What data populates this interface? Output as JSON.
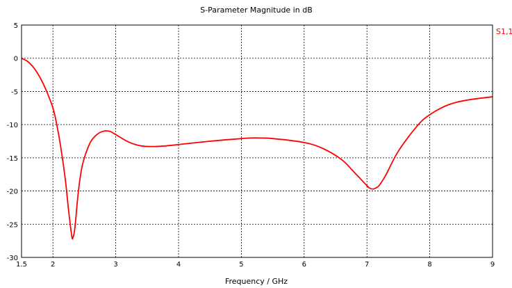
{
  "chart_data": {
    "type": "line",
    "title": "S-Parameter Magnitude in dB",
    "xlabel": "Frequency / GHz",
    "ylabel": "",
    "xlim": [
      1.5,
      9
    ],
    "ylim": [
      -30,
      5
    ],
    "x_ticks": [
      1.5,
      2,
      3,
      4,
      5,
      6,
      7,
      8,
      9
    ],
    "x_tick_labels": [
      "1.5",
      "2",
      "3",
      "4",
      "5",
      "6",
      "7",
      "8",
      "9"
    ],
    "y_ticks": [
      5,
      0,
      -5,
      -10,
      -15,
      -20,
      -25,
      -30
    ],
    "y_tick_labels": [
      "5",
      "0",
      "-5",
      "-10",
      "-15",
      "-20",
      "-25",
      "-30"
    ],
    "grid": true,
    "legend": "right",
    "series": [
      {
        "name": "S1,1",
        "color": "#ff0000",
        "x": [
          1.5,
          1.6,
          1.7,
          1.8,
          1.9,
          2.0,
          2.05,
          2.1,
          2.15,
          2.2,
          2.25,
          2.3,
          2.32,
          2.35,
          2.4,
          2.45,
          2.5,
          2.6,
          2.7,
          2.8,
          2.9,
          3.0,
          3.2,
          3.4,
          3.6,
          3.8,
          4.0,
          4.5,
          5.0,
          5.2,
          5.5,
          6.0,
          6.3,
          6.6,
          6.8,
          7.0,
          7.05,
          7.1,
          7.15,
          7.2,
          7.3,
          7.5,
          7.8,
          8.0,
          8.3,
          8.6,
          9.0
        ],
        "values": [
          0.0,
          -0.5,
          -1.5,
          -3.0,
          -5.0,
          -7.5,
          -9.5,
          -12.0,
          -15.0,
          -18.5,
          -23.0,
          -26.8,
          -27.0,
          -25.5,
          -20.5,
          -17.0,
          -15.0,
          -12.6,
          -11.5,
          -11.0,
          -11.0,
          -11.5,
          -12.6,
          -13.2,
          -13.3,
          -13.2,
          -13.0,
          -12.5,
          -12.1,
          -12.0,
          -12.1,
          -12.7,
          -13.6,
          -15.3,
          -17.2,
          -19.2,
          -19.6,
          -19.7,
          -19.5,
          -19.1,
          -17.6,
          -14.0,
          -10.2,
          -8.5,
          -7.0,
          -6.3,
          -5.8
        ]
      }
    ]
  }
}
